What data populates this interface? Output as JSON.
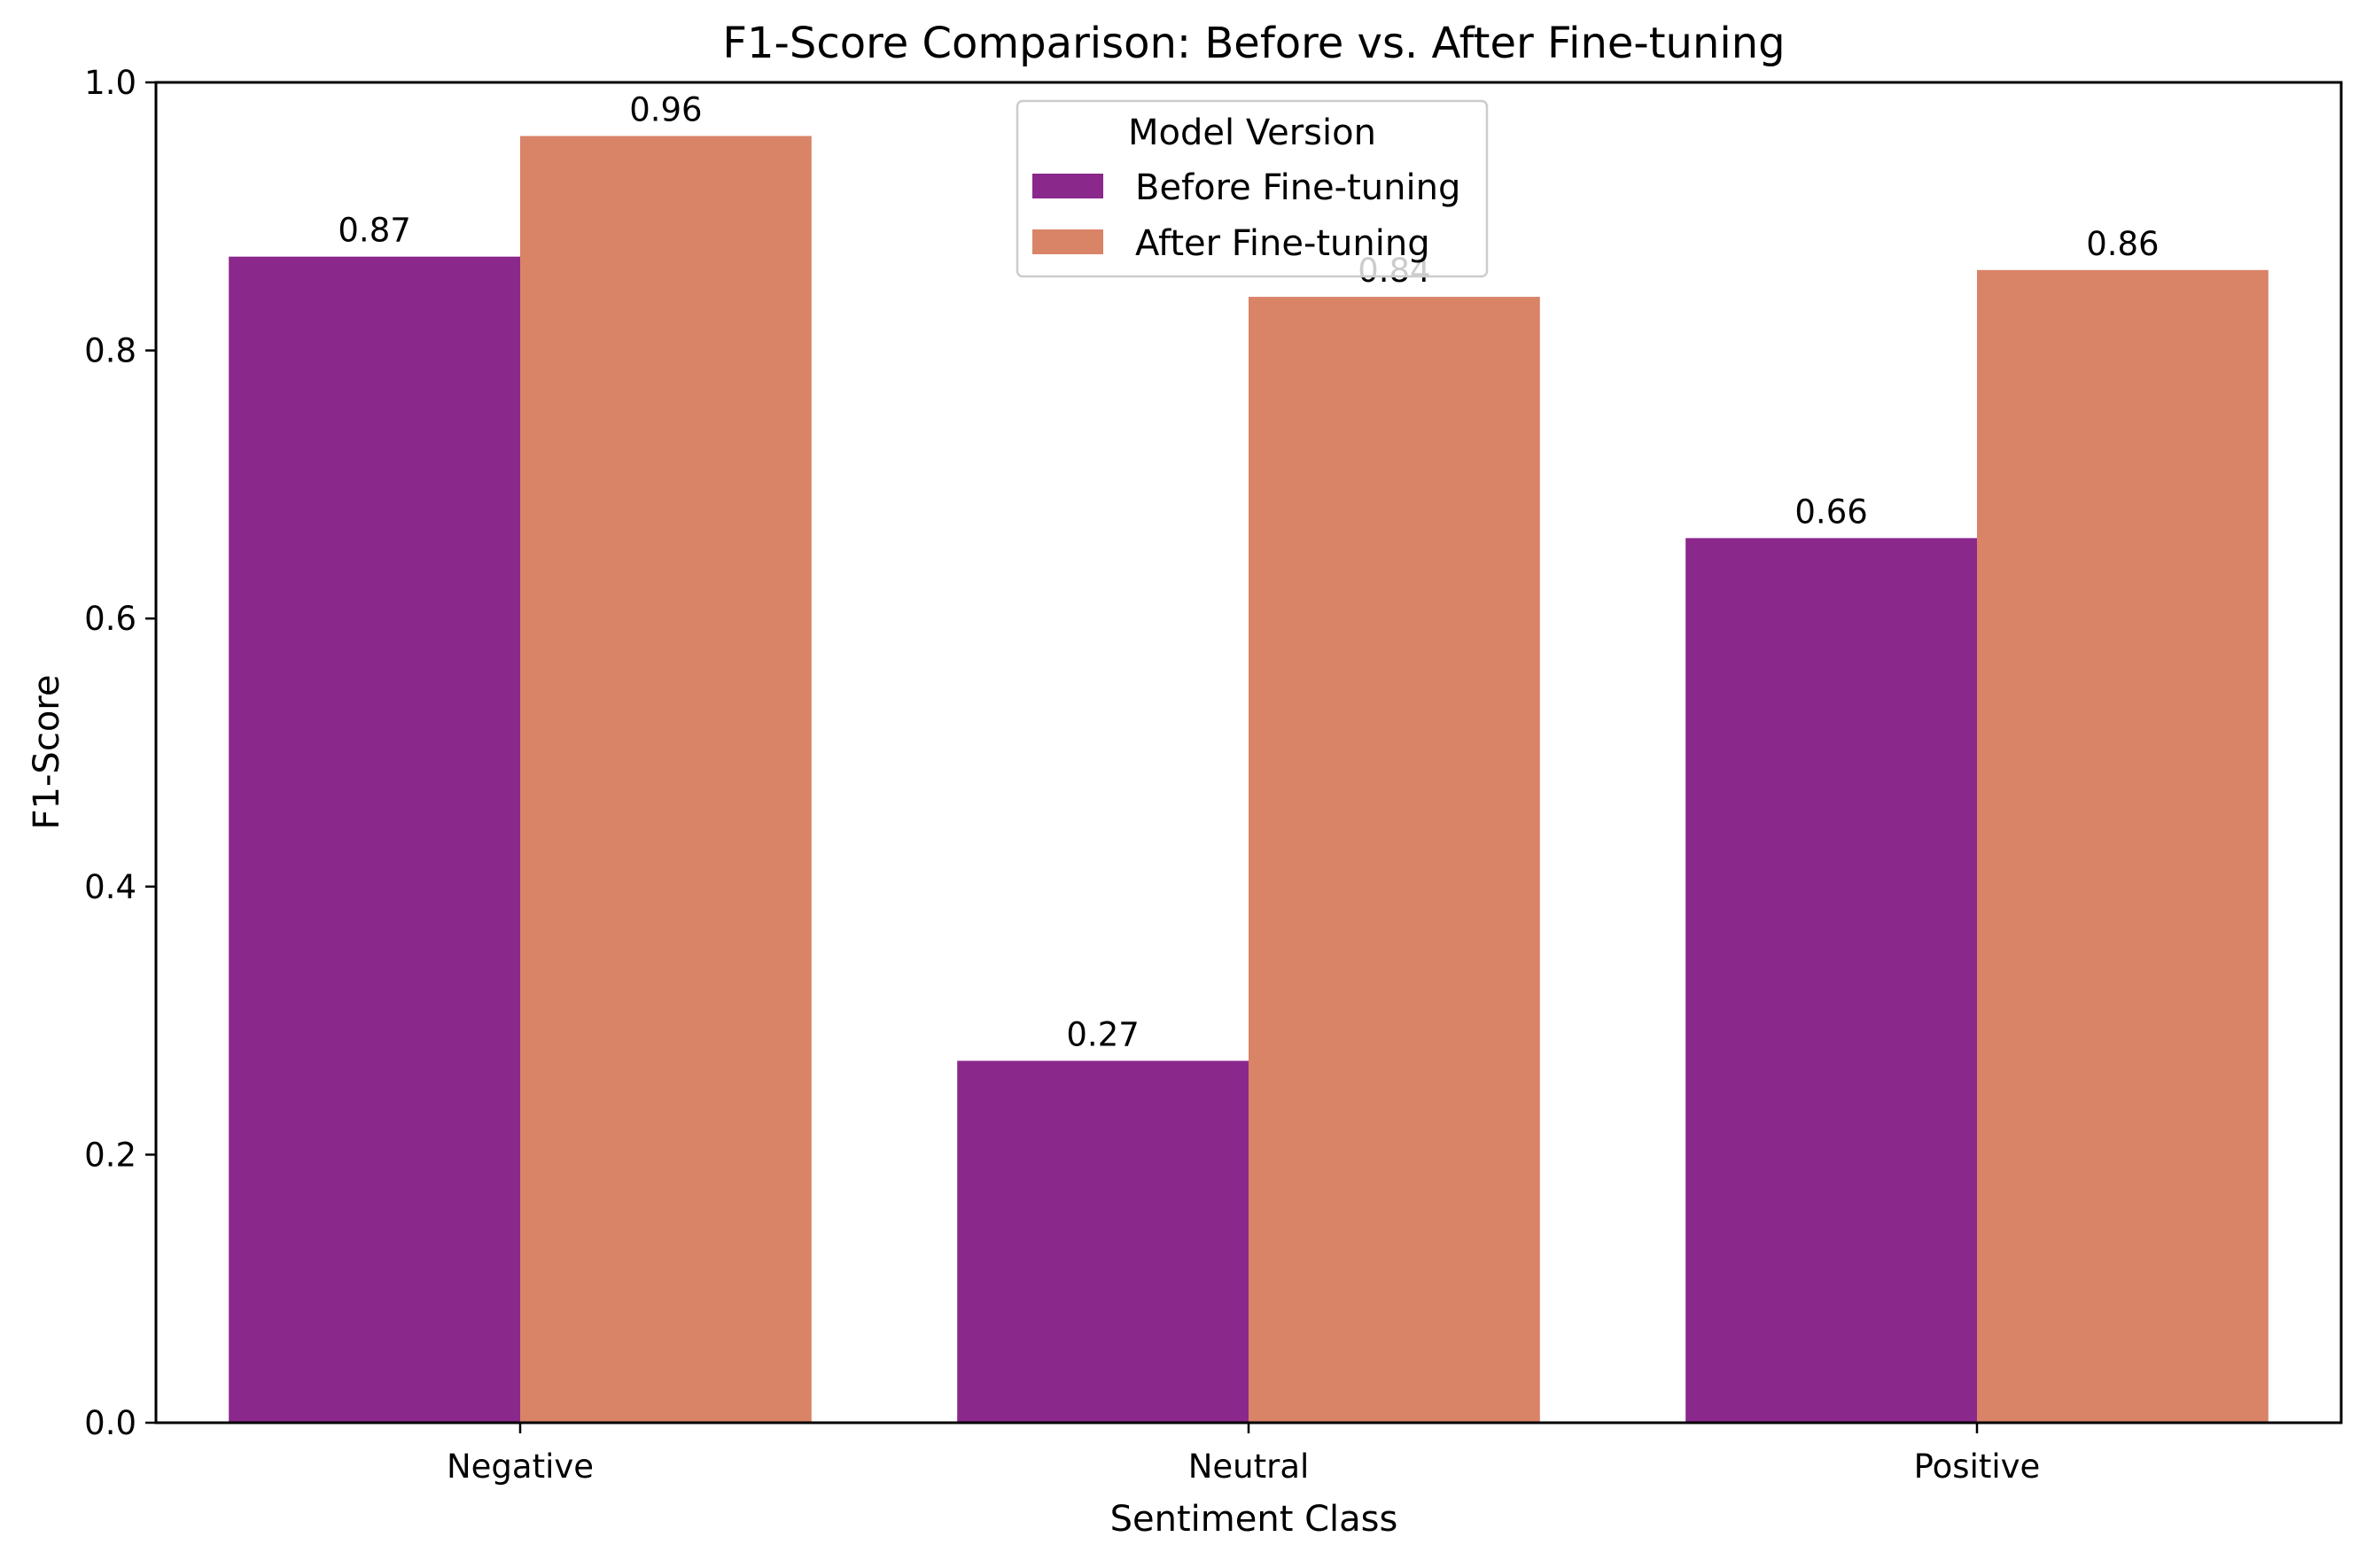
{
  "chart_data": {
    "type": "bar",
    "title": "F1-Score Comparison: Before vs. After Fine-tuning",
    "xlabel": "Sentiment Class",
    "ylabel": "F1-Score",
    "categories": [
      "Negative",
      "Neutral",
      "Positive"
    ],
    "ylim": [
      0,
      1.0
    ],
    "yticks": [
      "0.0",
      "0.2",
      "0.4",
      "0.6",
      "0.8",
      "1.0"
    ],
    "grid": false,
    "legend": {
      "title": "Model Version",
      "placement": "top-center"
    },
    "series": [
      {
        "name": "Before Fine-tuning",
        "color": "#8a288c",
        "values": [
          0.87,
          0.27,
          0.66
        ],
        "labels": [
          "0.87",
          "0.27",
          "0.66"
        ]
      },
      {
        "name": "After Fine-tuning",
        "color": "#d98367",
        "values": [
          0.96,
          0.84,
          0.86
        ],
        "labels": [
          "0.96",
          "0.84",
          "0.86"
        ]
      }
    ]
  }
}
